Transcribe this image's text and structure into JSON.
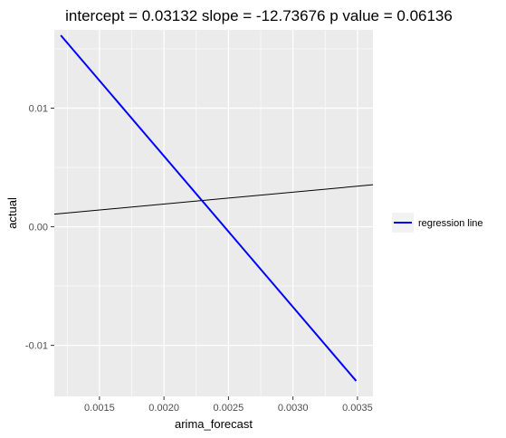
{
  "chart_data": {
    "type": "line",
    "title": "intercept = 0.03132 slope = -12.73676 p value = 0.06136",
    "xlabel": "arima_forecast",
    "ylabel": "actual",
    "xlim": [
      0.00115,
      0.00362
    ],
    "ylim": [
      -0.0143,
      0.0166
    ],
    "grid": true,
    "legend_position": "right",
    "x_ticks": [
      {
        "value": 0.0015,
        "label": "0.0015"
      },
      {
        "value": 0.002,
        "label": "0.0020"
      },
      {
        "value": 0.0025,
        "label": "0.0025"
      },
      {
        "value": 0.003,
        "label": "0.0030"
      },
      {
        "value": 0.0035,
        "label": "0.0035"
      }
    ],
    "y_ticks": [
      {
        "value": -0.01,
        "label": "-0.01"
      },
      {
        "value": 0.0,
        "label": "0.00"
      },
      {
        "value": 0.01,
        "label": "0.01"
      }
    ],
    "series": [
      {
        "name": "regression line",
        "color": "#0000ff",
        "points": [
          [
            0.0012,
            0.01614
          ],
          [
            0.00349,
            -0.013
          ]
        ]
      },
      {
        "name": "",
        "color": "#000000",
        "points": [
          [
            0.00115,
            0.00106
          ],
          [
            0.00362,
            0.00354
          ]
        ]
      }
    ]
  }
}
